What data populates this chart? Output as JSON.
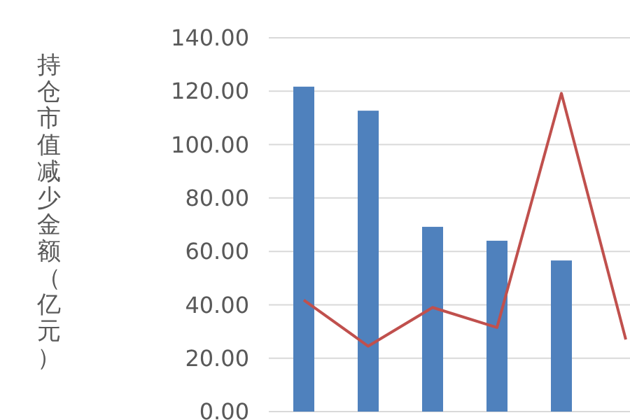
{
  "chart_data": {
    "type": "bar",
    "ylabel": "持仓市值减少金额（亿元）",
    "categories": [
      null,
      null,
      null,
      null,
      null,
      null
    ],
    "ylim": [
      0,
      140
    ],
    "yticks": [
      {
        "value": 0,
        "label": "0.00"
      },
      {
        "value": 20,
        "label": "20.00"
      },
      {
        "value": 40,
        "label": "40.00"
      },
      {
        "value": 60,
        "label": "60.00"
      },
      {
        "value": 80,
        "label": "80.00"
      },
      {
        "value": 100,
        "label": "100.00"
      },
      {
        "value": 120,
        "label": "120.00"
      },
      {
        "value": 140,
        "label": "140.00"
      }
    ],
    "grid": "y",
    "series": [
      {
        "color": "#4f81bd",
        "values": [
          121.7,
          112.7,
          69.2,
          64,
          56.6,
          null
        ]
      },
      {
        "type": "line",
        "color": "#c0504d",
        "values": [
          41.8,
          24.5,
          39,
          31.5,
          119.2,
          27
        ]
      }
    ]
  }
}
